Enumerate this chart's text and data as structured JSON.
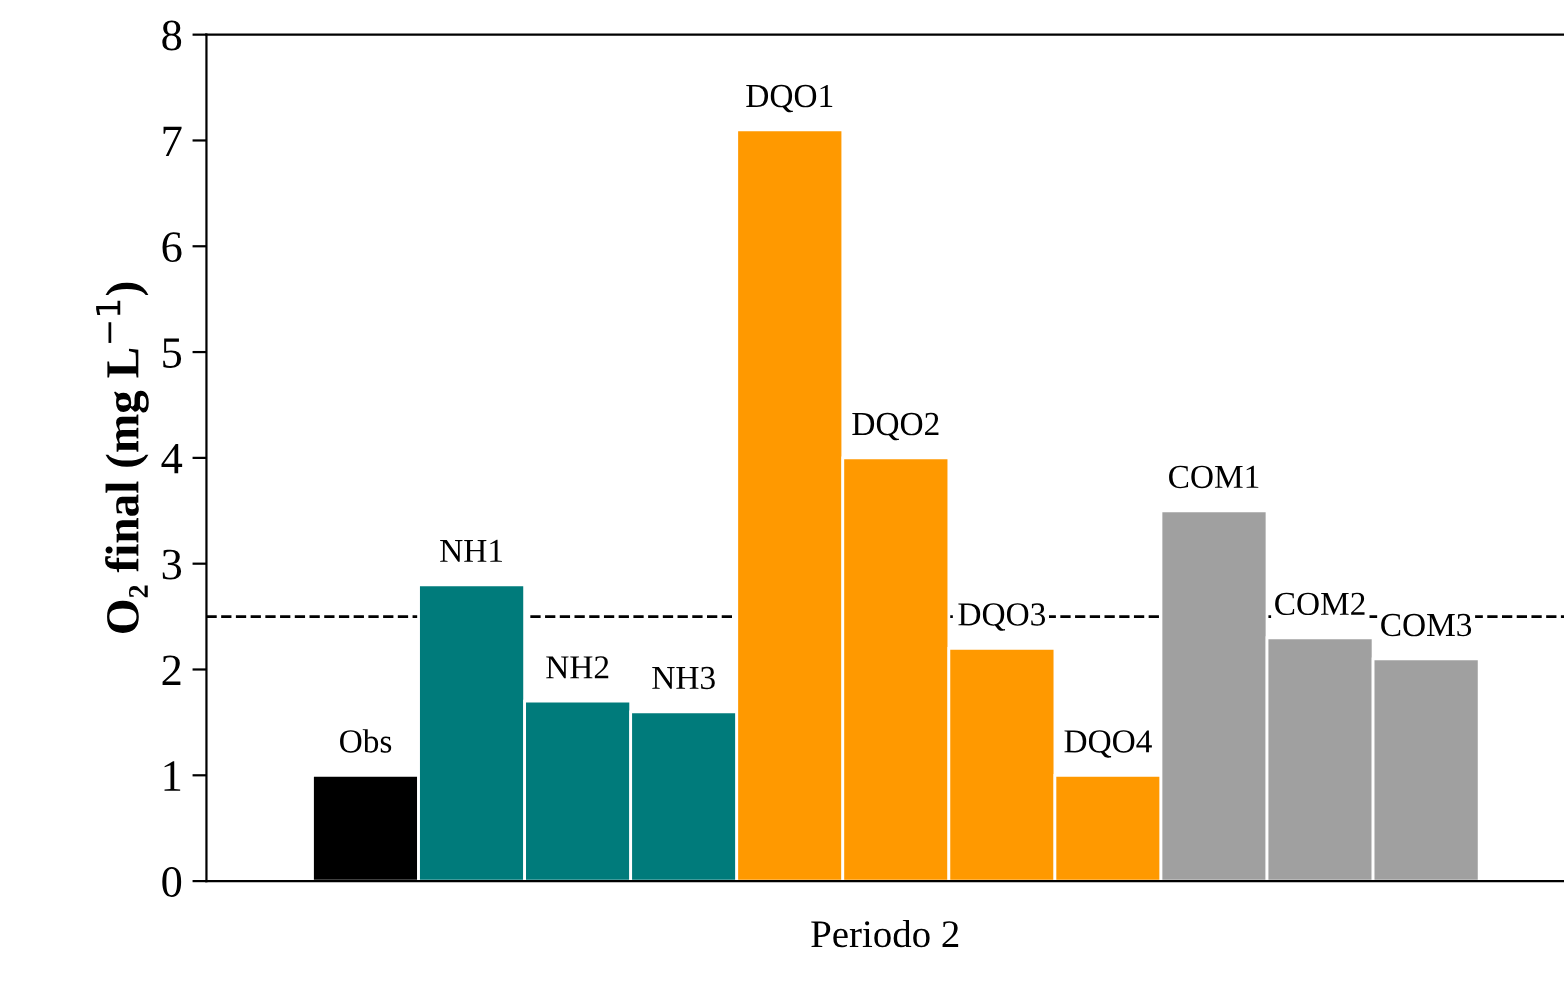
{
  "chart_data": {
    "type": "bar",
    "categories": [
      "Obs",
      "NH1",
      "NH2",
      "NH3",
      "DQO1",
      "DQO2",
      "DQO3",
      "DQO4",
      "COM1",
      "COM2",
      "COM3"
    ],
    "values": [
      1.0,
      2.8,
      1.7,
      1.6,
      7.1,
      4.0,
      2.2,
      1.0,
      3.5,
      2.3,
      2.1
    ],
    "colors": [
      "#000000",
      "#007b7b",
      "#007b7b",
      "#007b7b",
      "#ff9900",
      "#ff9900",
      "#ff9900",
      "#ff9900",
      "#a0a0a0",
      "#a0a0a0",
      "#a0a0a0"
    ],
    "xlabel": "Periodo 2",
    "ylabel": "O₂ final (mg L$^{−1}$)",
    "ylim": [
      0,
      8
    ],
    "yticks": [
      0,
      1,
      2,
      3,
      4,
      5,
      6,
      7,
      8
    ],
    "tick_labels": "y",
    "grid": false,
    "legend": false,
    "ref_lines": [
      {
        "axis": "y",
        "value": 2.5,
        "line_style": "dashed",
        "color": "#000000"
      }
    ]
  }
}
